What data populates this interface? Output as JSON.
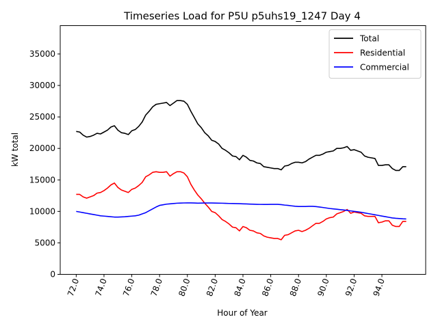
{
  "chart_data": {
    "type": "line",
    "title": "Timeseries Load for P5U p5uhs19_1247  Day 4",
    "xlabel": "Hour of Year",
    "ylabel": "kW total",
    "xlim": [
      70.85,
      97.15
    ],
    "ylim": [
      0,
      39500
    ],
    "xticks": [
      72,
      74,
      76,
      78,
      80,
      82,
      84,
      86,
      88,
      90,
      92,
      94
    ],
    "xtick_labels": [
      "72.0",
      "74.0",
      "76.0",
      "78.0",
      "80.0",
      "82.0",
      "84.0",
      "86.0",
      "88.0",
      "90.0",
      "92.0",
      "94.0"
    ],
    "yticks": [
      0,
      5000,
      10000,
      15000,
      20000,
      25000,
      30000,
      35000
    ],
    "ytick_labels": [
      "0",
      "5000",
      "10000",
      "15000",
      "20000",
      "25000",
      "30000",
      "35000"
    ],
    "legend_position": "top-right",
    "x": [
      72.0,
      72.25,
      72.5,
      72.75,
      73.0,
      73.25,
      73.5,
      73.75,
      74.0,
      74.25,
      74.5,
      74.75,
      75.0,
      75.25,
      75.5,
      75.75,
      76.0,
      76.25,
      76.5,
      76.75,
      77.0,
      77.25,
      77.5,
      77.75,
      78.0,
      78.25,
      78.5,
      78.75,
      79.0,
      79.25,
      79.5,
      79.75,
      80.0,
      80.25,
      80.5,
      80.75,
      81.0,
      81.25,
      81.5,
      81.75,
      82.0,
      82.25,
      82.5,
      82.75,
      83.0,
      83.25,
      83.5,
      83.75,
      84.0,
      84.25,
      84.5,
      84.75,
      85.0,
      85.25,
      85.5,
      85.75,
      86.0,
      86.25,
      86.5,
      86.75,
      87.0,
      87.25,
      87.5,
      87.75,
      88.0,
      88.25,
      88.5,
      88.75,
      89.0,
      89.25,
      89.5,
      89.75,
      90.0,
      90.25,
      90.5,
      90.75,
      91.0,
      91.25,
      91.5,
      91.75,
      92.0,
      92.25,
      92.5,
      92.75,
      93.0,
      93.25,
      93.5,
      93.75,
      94.0,
      94.25,
      94.5,
      94.75,
      95.0,
      95.25,
      95.5,
      95.75
    ],
    "series": [
      {
        "name": "Total",
        "color": "#000000",
        "values": [
          22700,
          22600,
          22100,
          21800,
          21900,
          22100,
          22400,
          22300,
          22600,
          22900,
          23400,
          23600,
          22900,
          22500,
          22400,
          22200,
          22800,
          23000,
          23500,
          24200,
          25300,
          25900,
          26600,
          27000,
          27100,
          27200,
          27300,
          26800,
          27200,
          27600,
          27600,
          27500,
          27000,
          25900,
          24900,
          23900,
          23300,
          22500,
          22000,
          21300,
          21100,
          20700,
          20000,
          19700,
          19300,
          18800,
          18700,
          18200,
          18900,
          18600,
          18100,
          18000,
          17700,
          17600,
          17100,
          17000,
          16900,
          16800,
          16800,
          16600,
          17200,
          17300,
          17600,
          17800,
          17800,
          17700,
          17900,
          18300,
          18600,
          18900,
          18900,
          19100,
          19400,
          19500,
          19600,
          20000,
          20000,
          20100,
          20300,
          19700,
          19800,
          19600,
          19400,
          18800,
          18600,
          18500,
          18400,
          17300,
          17300,
          17400,
          17400,
          16800,
          16500,
          16500,
          17100,
          17100
        ]
      },
      {
        "name": "Residential",
        "color": "#ff0000",
        "values": [
          12700,
          12700,
          12300,
          12100,
          12300,
          12500,
          12900,
          13000,
          13300,
          13700,
          14200,
          14500,
          13800,
          13400,
          13200,
          13000,
          13500,
          13700,
          14100,
          14600,
          15500,
          15800,
          16200,
          16300,
          16200,
          16200,
          16300,
          15600,
          16000,
          16300,
          16300,
          16100,
          15500,
          14300,
          13400,
          12600,
          12000,
          11300,
          10700,
          10000,
          9800,
          9300,
          8700,
          8400,
          8000,
          7500,
          7400,
          6900,
          7600,
          7400,
          7000,
          6900,
          6600,
          6500,
          6100,
          5900,
          5800,
          5700,
          5700,
          5500,
          6200,
          6300,
          6600,
          6900,
          7000,
          6800,
          7000,
          7300,
          7700,
          8100,
          8100,
          8400,
          8800,
          9000,
          9100,
          9600,
          9800,
          10000,
          10300,
          9700,
          9900,
          9800,
          9700,
          9300,
          9200,
          9200,
          9200,
          8200,
          8300,
          8500,
          8500,
          7800,
          7600,
          7600,
          8400,
          8400
        ]
      },
      {
        "name": "Commercial",
        "color": "#0000ff",
        "values": [
          10000,
          9900,
          9800,
          9700,
          9600,
          9500,
          9400,
          9300,
          9250,
          9200,
          9150,
          9100,
          9100,
          9120,
          9150,
          9200,
          9250,
          9300,
          9400,
          9600,
          9800,
          10100,
          10400,
          10700,
          10950,
          11050,
          11150,
          11200,
          11250,
          11300,
          11320,
          11340,
          11350,
          11350,
          11330,
          11310,
          11320,
          11330,
          11340,
          11330,
          11320,
          11310,
          11300,
          11280,
          11260,
          11250,
          11240,
          11220,
          11200,
          11180,
          11160,
          11140,
          11120,
          11110,
          11100,
          11100,
          11120,
          11120,
          11120,
          11080,
          11000,
          10950,
          10880,
          10820,
          10780,
          10780,
          10780,
          10800,
          10800,
          10760,
          10700,
          10620,
          10540,
          10460,
          10400,
          10340,
          10280,
          10220,
          10150,
          10080,
          10000,
          9940,
          9860,
          9760,
          9660,
          9560,
          9460,
          9360,
          9260,
          9160,
          9060,
          8960,
          8900,
          8860,
          8820,
          8800
        ]
      }
    ]
  }
}
